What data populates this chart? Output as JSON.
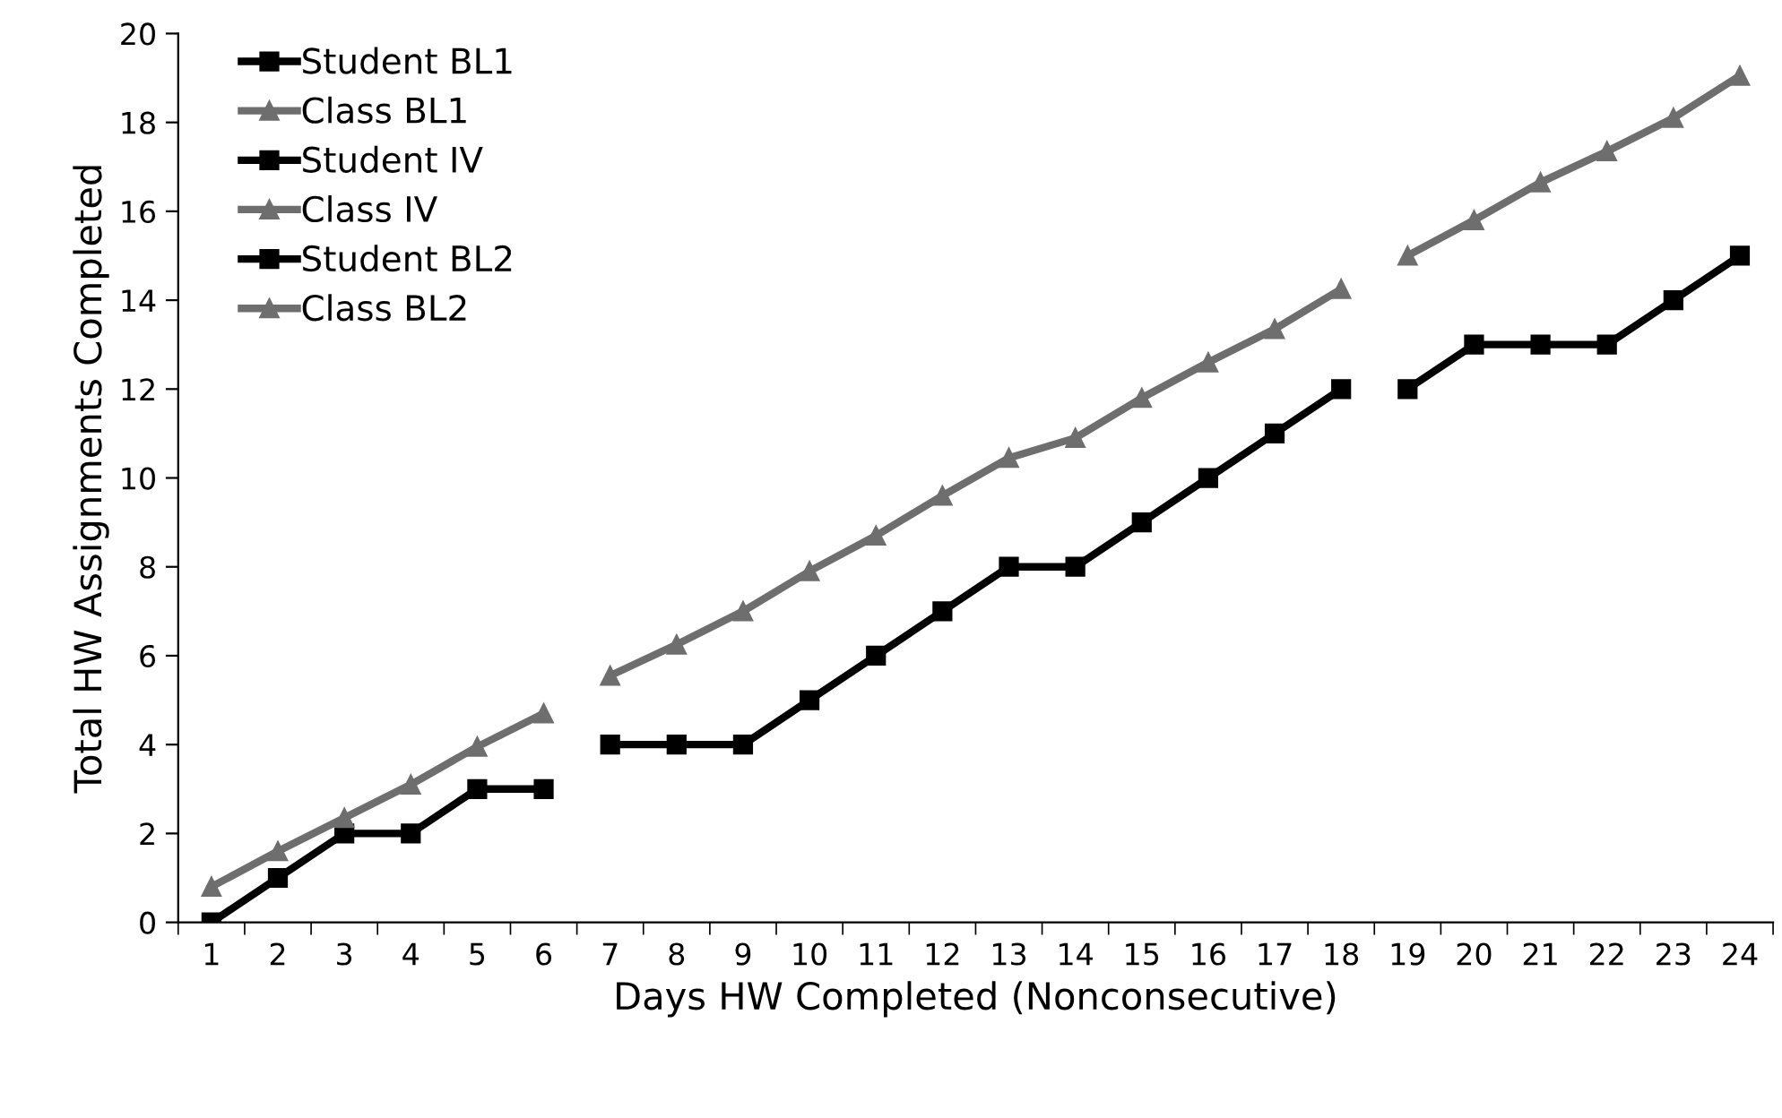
{
  "chart_data": {
    "type": "line",
    "xlabel": "Days HW Completed (Nonconsecutive)",
    "ylabel": "Total HW Assignments Completed",
    "categories": [
      "1",
      "2",
      "3",
      "4",
      "5",
      "6",
      "7",
      "8",
      "9",
      "10",
      "11",
      "12",
      "13",
      "14",
      "15",
      "16",
      "17",
      "18",
      "19",
      "20",
      "21",
      "22",
      "23",
      "24"
    ],
    "ylim": [
      0,
      20
    ],
    "yticks": [
      0,
      2,
      4,
      6,
      8,
      10,
      12,
      14,
      16,
      18,
      20
    ],
    "grid": false,
    "legend": "top left",
    "line_style": "solid",
    "series": [
      {
        "name": "Student BL1",
        "color": "#000000",
        "marker": "square",
        "values": [
          0,
          1,
          2,
          2,
          3,
          3,
          null,
          null,
          null,
          null,
          null,
          null,
          null,
          null,
          null,
          null,
          null,
          null,
          null,
          null,
          null,
          null,
          null,
          null
        ]
      },
      {
        "name": "Class BL1",
        "color": "#6e6e6e",
        "marker": "triangle",
        "values": [
          0.8,
          1.6,
          2.35,
          3.1,
          3.95,
          4.7,
          null,
          null,
          null,
          null,
          null,
          null,
          null,
          null,
          null,
          null,
          null,
          null,
          null,
          null,
          null,
          null,
          null,
          null
        ]
      },
      {
        "name": "Student IV",
        "color": "#000000",
        "marker": "square",
        "values": [
          null,
          null,
          null,
          null,
          null,
          null,
          4,
          4,
          4,
          5,
          6,
          7,
          8,
          8,
          9,
          10,
          11,
          12,
          null,
          null,
          null,
          null,
          null,
          null
        ]
      },
      {
        "name": "Class IV",
        "color": "#6e6e6e",
        "marker": "triangle",
        "values": [
          null,
          null,
          null,
          null,
          null,
          null,
          5.55,
          6.25,
          7.0,
          7.9,
          8.7,
          9.6,
          10.45,
          10.9,
          11.8,
          12.6,
          13.35,
          14.25,
          null,
          null,
          null,
          null,
          null,
          null
        ]
      },
      {
        "name": "Student BL2",
        "color": "#000000",
        "marker": "square",
        "values": [
          null,
          null,
          null,
          null,
          null,
          null,
          null,
          null,
          null,
          null,
          null,
          null,
          null,
          null,
          null,
          null,
          null,
          null,
          12,
          13,
          13,
          13,
          14,
          15
        ]
      },
      {
        "name": "Class BL2",
        "color": "#6e6e6e",
        "marker": "triangle",
        "values": [
          null,
          null,
          null,
          null,
          null,
          null,
          null,
          null,
          null,
          null,
          null,
          null,
          null,
          null,
          null,
          null,
          null,
          null,
          15.0,
          15.8,
          16.65,
          17.35,
          18.1,
          19.05
        ]
      }
    ]
  }
}
